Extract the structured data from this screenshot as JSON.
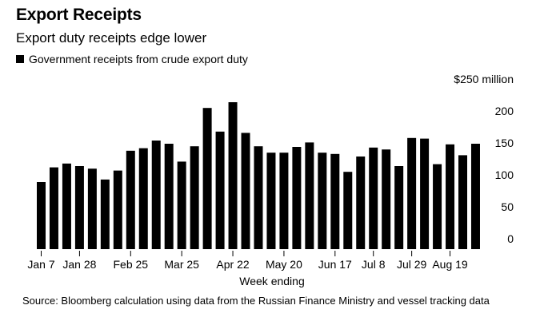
{
  "header": {
    "title": "Export Receipts",
    "subtitle": "Export duty receipts edge lower"
  },
  "legend": {
    "label": "Government receipts from crude export duty"
  },
  "footer": {
    "source": "Source: Bloomberg calculation using data from the Russian Finance Ministry and vessel tracking data"
  },
  "chart_data": {
    "type": "bar",
    "title": "Export Receipts",
    "subtitle": "Export duty receipts edge lower",
    "xlabel": "Week ending",
    "ylabel": "",
    "ylim": [
      0,
      250
    ],
    "y_ticks": [
      0,
      50,
      100,
      150,
      200,
      250
    ],
    "y_tick_labels": [
      "0",
      "50",
      "100",
      "150",
      "200",
      "$250 million"
    ],
    "grid": false,
    "legend_position": "top-left",
    "bar_color": "#000000",
    "x_tick_labels": [
      {
        "index": 0,
        "label": "Jan 7"
      },
      {
        "index": 3,
        "label": "Jan 28"
      },
      {
        "index": 7,
        "label": "Feb 25"
      },
      {
        "index": 11,
        "label": "Mar 25"
      },
      {
        "index": 15,
        "label": "Apr 22"
      },
      {
        "index": 19,
        "label": "May 20"
      },
      {
        "index": 23,
        "label": "Jun 17"
      },
      {
        "index": 26,
        "label": "Jul 8"
      },
      {
        "index": 29,
        "label": "Jul 29"
      },
      {
        "index": 32,
        "label": "Aug 19"
      }
    ],
    "series": [
      {
        "name": "Government receipts from crude export duty",
        "values": [
          105,
          128,
          134,
          130,
          126,
          109,
          123,
          154,
          158,
          170,
          165,
          137,
          161,
          221,
          184,
          230,
          182,
          161,
          151,
          151,
          160,
          167,
          151,
          149,
          121,
          145,
          159,
          156,
          130,
          174,
          173,
          133,
          164,
          147,
          165
        ]
      }
    ]
  }
}
